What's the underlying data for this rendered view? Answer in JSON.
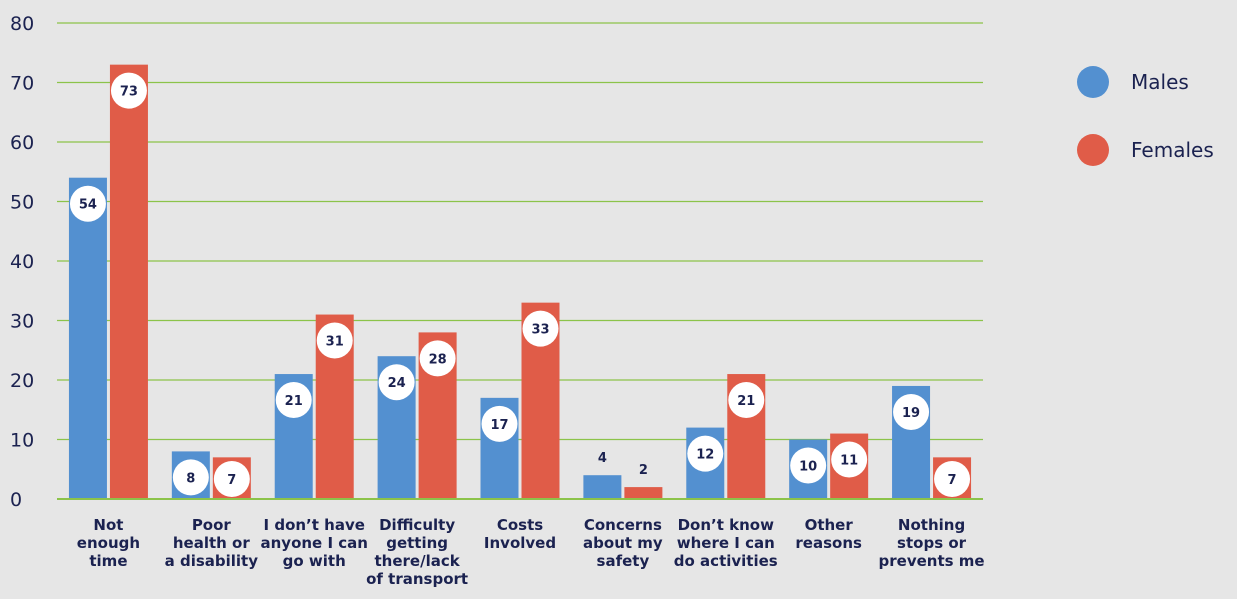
{
  "chart_data": {
    "type": "bar",
    "categories": [
      [
        "Not",
        "enough",
        "time"
      ],
      [
        "Poor",
        "health or",
        "a disability"
      ],
      [
        "I don’t have",
        "anyone I can",
        "go with"
      ],
      [
        "Difficulty",
        "getting",
        "there/lack",
        "of transport"
      ],
      [
        "Costs",
        "Involved"
      ],
      [
        "Concerns",
        "about my",
        "safety"
      ],
      [
        "Don’t know",
        "where I can",
        "do activities"
      ],
      [
        "Other",
        "reasons"
      ],
      [
        "Nothing",
        "stops or",
        "prevents me"
      ]
    ],
    "series": [
      {
        "name": "Males",
        "color": "#5390d0",
        "values": [
          54,
          8,
          21,
          24,
          17,
          4,
          12,
          10,
          19
        ]
      },
      {
        "name": "Females",
        "color": "#e05c48",
        "values": [
          73,
          7,
          31,
          28,
          33,
          2,
          21,
          11,
          7
        ]
      }
    ],
    "ylim": [
      0,
      80
    ],
    "yticks": [
      0,
      10,
      20,
      30,
      40,
      50,
      60,
      70,
      80
    ],
    "grid": true,
    "grid_color": "#8cc34a",
    "text_color": "#1b2250",
    "legend_position": "right"
  }
}
